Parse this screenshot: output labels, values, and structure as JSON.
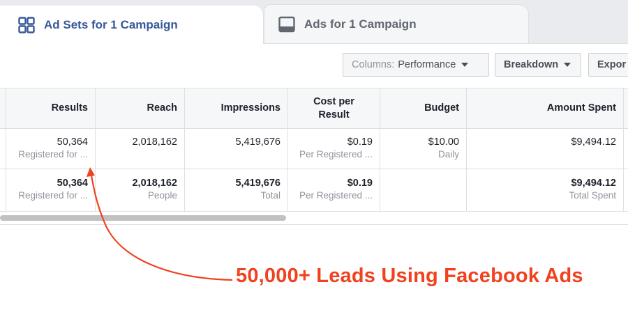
{
  "tabs": [
    {
      "label": "Ad Sets for 1 Campaign",
      "icon": "grid-icon",
      "active": true
    },
    {
      "label": "Ads for 1 Campaign",
      "icon": "ad-preview-icon",
      "active": false
    }
  ],
  "toolbar": {
    "columns_prefix": "Columns:",
    "columns_value": "Performance",
    "breakdown_label": "Breakdown",
    "export_label": "Expor"
  },
  "table": {
    "headers": {
      "results": "Results",
      "reach": "Reach",
      "impressions": "Impressions",
      "cost_per_result_line1": "Cost per",
      "cost_per_result_line2": "Result",
      "budget": "Budget",
      "amount_spent": "Amount Spent"
    },
    "row": {
      "results": "50,364",
      "results_sub": "Registered for ...",
      "reach": "2,018,162",
      "impressions": "5,419,676",
      "cost": "$0.19",
      "cost_sub": "Per Registered ...",
      "budget": "$10.00",
      "budget_sub": "Daily",
      "spent": "$9,494.12"
    },
    "total": {
      "results": "50,364",
      "results_sub": "Registered for ...",
      "reach": "2,018,162",
      "reach_sub": "People",
      "impressions": "5,419,676",
      "impressions_sub": "Total",
      "cost": "$0.19",
      "cost_sub": "Per Registered ...",
      "spent": "$9,494.12",
      "spent_sub": "Total Spent"
    }
  },
  "annotation": {
    "text": "50,000+ Leads Using Facebook Ads",
    "color": "#f0421e"
  },
  "colors": {
    "active_tab_text": "#365899",
    "inactive_tab_text": "#606770",
    "border": "#dddfe2"
  }
}
